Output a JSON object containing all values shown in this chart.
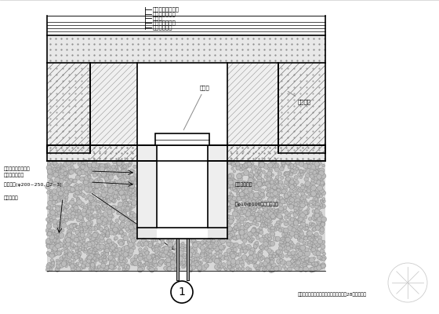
{
  "bg_color": "#ffffff",
  "lc": "#000000",
  "title_labels": [
    "自防水混凝土底板",
    "水泥砂浆保护层",
    "防水层",
    "水泥砂浆找平层",
    "素混凝土垫层"
  ],
  "label_ganggai": "钢管盖",
  "label_yongjiu": "水久砖砌",
  "label_toushui": "透水胶性胶膜",
  "label_guokong": "钻φ10@100过水孔至垫层",
  "label_dixia1": "地下室底板施工完毕",
  "label_dixia2": "插入级配碎石坑",
  "label_jiangshui": "降水钢管(φ200~250, 厚2~3)",
  "label_zusha": "粗砂、砾石",
  "label_note": "注：降水钢管盖在地下室后浇带浇筑完毕28天后盖盖。",
  "circle_label": "1"
}
